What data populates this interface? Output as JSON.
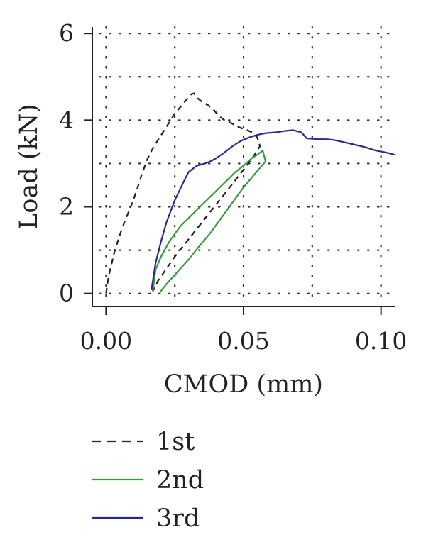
{
  "chart_data": {
    "type": "line",
    "xlabel": "CMOD (mm)",
    "ylabel": "Load (kN)",
    "xlim": [
      -0.005,
      0.105
    ],
    "ylim": [
      -0.3,
      6.15
    ],
    "xticks": [
      0.0,
      0.05,
      0.1
    ],
    "xtick_labels": [
      "0.00",
      "0.05",
      "0.10"
    ],
    "yticks": [
      0,
      2,
      4,
      6
    ],
    "ytick_labels": [
      "0",
      "2",
      "4",
      "6"
    ],
    "grid": true,
    "legend_position": "below",
    "series": [
      {
        "name": "1st",
        "color": "#222222",
        "style": "dashed",
        "points": [
          [
            0.0,
            0.0
          ],
          [
            0.0008,
            0.35
          ],
          [
            0.0015,
            0.55
          ],
          [
            0.003,
            0.95
          ],
          [
            0.005,
            1.35
          ],
          [
            0.007,
            1.7
          ],
          [
            0.009,
            2.0
          ],
          [
            0.011,
            2.35
          ],
          [
            0.013,
            2.75
          ],
          [
            0.015,
            3.1
          ],
          [
            0.017,
            3.35
          ],
          [
            0.019,
            3.55
          ],
          [
            0.021,
            3.75
          ],
          [
            0.023,
            3.95
          ],
          [
            0.025,
            4.15
          ],
          [
            0.027,
            4.3
          ],
          [
            0.029,
            4.45
          ],
          [
            0.031,
            4.6
          ],
          [
            0.032,
            4.62
          ],
          [
            0.033,
            4.52
          ],
          [
            0.035,
            4.42
          ],
          [
            0.037,
            4.35
          ],
          [
            0.039,
            4.25
          ],
          [
            0.041,
            4.1
          ],
          [
            0.043,
            4.0
          ],
          [
            0.045,
            3.95
          ],
          [
            0.047,
            3.88
          ],
          [
            0.049,
            3.82
          ],
          [
            0.051,
            3.78
          ],
          [
            0.053,
            3.72
          ],
          [
            0.055,
            3.6
          ],
          [
            0.056,
            3.4
          ],
          [
            0.053,
            3.1
          ],
          [
            0.045,
            2.45
          ],
          [
            0.035,
            1.65
          ],
          [
            0.025,
            0.85
          ],
          [
            0.019,
            0.3
          ],
          [
            0.017,
            0.05
          ]
        ]
      },
      {
        "name": "2nd",
        "color": "#3a9a3a",
        "style": "solid",
        "points": [
          [
            0.017,
            0.05
          ],
          [
            0.018,
            0.55
          ],
          [
            0.02,
            0.85
          ],
          [
            0.023,
            1.2
          ],
          [
            0.027,
            1.55
          ],
          [
            0.031,
            1.8
          ],
          [
            0.035,
            2.05
          ],
          [
            0.039,
            2.3
          ],
          [
            0.043,
            2.55
          ],
          [
            0.047,
            2.8
          ],
          [
            0.05,
            2.95
          ],
          [
            0.053,
            3.12
          ],
          [
            0.055,
            3.2
          ],
          [
            0.056,
            3.25
          ],
          [
            0.057,
            3.3
          ],
          [
            0.058,
            3.05
          ],
          [
            0.054,
            2.75
          ],
          [
            0.05,
            2.45
          ],
          [
            0.046,
            2.1
          ],
          [
            0.042,
            1.75
          ],
          [
            0.038,
            1.4
          ],
          [
            0.034,
            1.1
          ],
          [
            0.03,
            0.78
          ],
          [
            0.026,
            0.5
          ],
          [
            0.022,
            0.22
          ],
          [
            0.0195,
            0.02
          ]
        ]
      },
      {
        "name": "3rd",
        "color": "#2a2a8a",
        "style": "solid",
        "points": [
          [
            0.0165,
            0.08
          ],
          [
            0.018,
            0.7
          ],
          [
            0.02,
            1.2
          ],
          [
            0.022,
            1.65
          ],
          [
            0.025,
            2.15
          ],
          [
            0.028,
            2.55
          ],
          [
            0.03,
            2.8
          ],
          [
            0.033,
            2.95
          ],
          [
            0.036,
            3.0
          ],
          [
            0.038,
            3.05
          ],
          [
            0.04,
            3.12
          ],
          [
            0.043,
            3.25
          ],
          [
            0.046,
            3.4
          ],
          [
            0.049,
            3.52
          ],
          [
            0.052,
            3.6
          ],
          [
            0.055,
            3.66
          ],
          [
            0.058,
            3.7
          ],
          [
            0.062,
            3.72
          ],
          [
            0.065,
            3.75
          ],
          [
            0.068,
            3.77
          ],
          [
            0.071,
            3.72
          ],
          [
            0.073,
            3.58
          ],
          [
            0.077,
            3.56
          ],
          [
            0.08,
            3.56
          ],
          [
            0.083,
            3.54
          ],
          [
            0.086,
            3.5
          ],
          [
            0.09,
            3.44
          ],
          [
            0.094,
            3.38
          ],
          [
            0.098,
            3.3
          ],
          [
            0.102,
            3.25
          ],
          [
            0.105,
            3.2
          ]
        ]
      }
    ]
  }
}
